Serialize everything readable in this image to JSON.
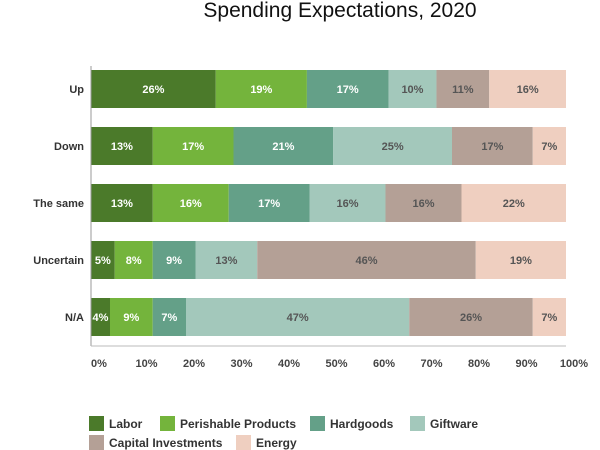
{
  "chart_data": {
    "type": "bar",
    "orientation": "horizontal",
    "stacked": true,
    "title": "Spending Expectations, 2020",
    "xlabel": "",
    "ylabel": "",
    "xlim": [
      0,
      100
    ],
    "x_ticks": [
      "0%",
      "10%",
      "20%",
      "30%",
      "40%",
      "50%",
      "60%",
      "70%",
      "80%",
      "90%",
      "100%"
    ],
    "grid": false,
    "legend_position": "bottom-left",
    "categories": [
      "Up",
      "Down",
      "The same",
      "Uncertain",
      "N/A"
    ],
    "series": [
      {
        "name": "Labor",
        "color": "#4b7a2a",
        "values": [
          26,
          13,
          13,
          5,
          4
        ]
      },
      {
        "name": "Perishable Products",
        "color": "#74b43c",
        "values": [
          19,
          17,
          16,
          8,
          9
        ]
      },
      {
        "name": "Hardgoods",
        "color": "#64a088",
        "values": [
          17,
          21,
          17,
          9,
          7
        ]
      },
      {
        "name": "Giftware",
        "color": "#a3c8bb",
        "values": [
          10,
          25,
          16,
          13,
          47
        ]
      },
      {
        "name": "Capital Investments",
        "color": "#b4a096",
        "values": [
          11,
          17,
          16,
          46,
          26
        ]
      },
      {
        "name": "Energy",
        "color": "#efcfc0",
        "values": [
          16,
          7,
          22,
          19,
          7
        ]
      }
    ]
  }
}
